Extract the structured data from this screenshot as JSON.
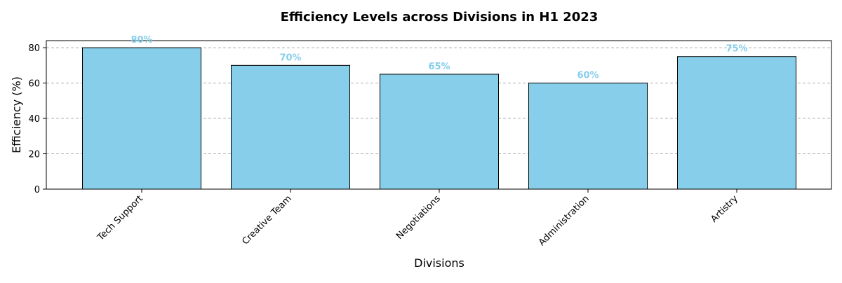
{
  "chart_data": {
    "type": "bar",
    "title": "Efficiency Levels across Divisions in H1 2023",
    "xlabel": "Divisions",
    "ylabel": "Efficiency (%)",
    "categories": [
      "Tech Support",
      "Creative Team",
      "Negotiations",
      "Administration",
      "Artistry"
    ],
    "values": [
      80,
      70,
      65,
      60,
      75
    ],
    "data_labels": [
      "80%",
      "70%",
      "65%",
      "60%",
      "75%"
    ],
    "yticks": [
      0,
      20,
      40,
      60,
      80
    ],
    "ylim": [
      0,
      84
    ],
    "grid": "y-dashed",
    "bar_color": "#87ceeb",
    "bar_edge_color": "#000000",
    "label_color": "#87ceeb",
    "grid_color": "#b0b0b0"
  }
}
